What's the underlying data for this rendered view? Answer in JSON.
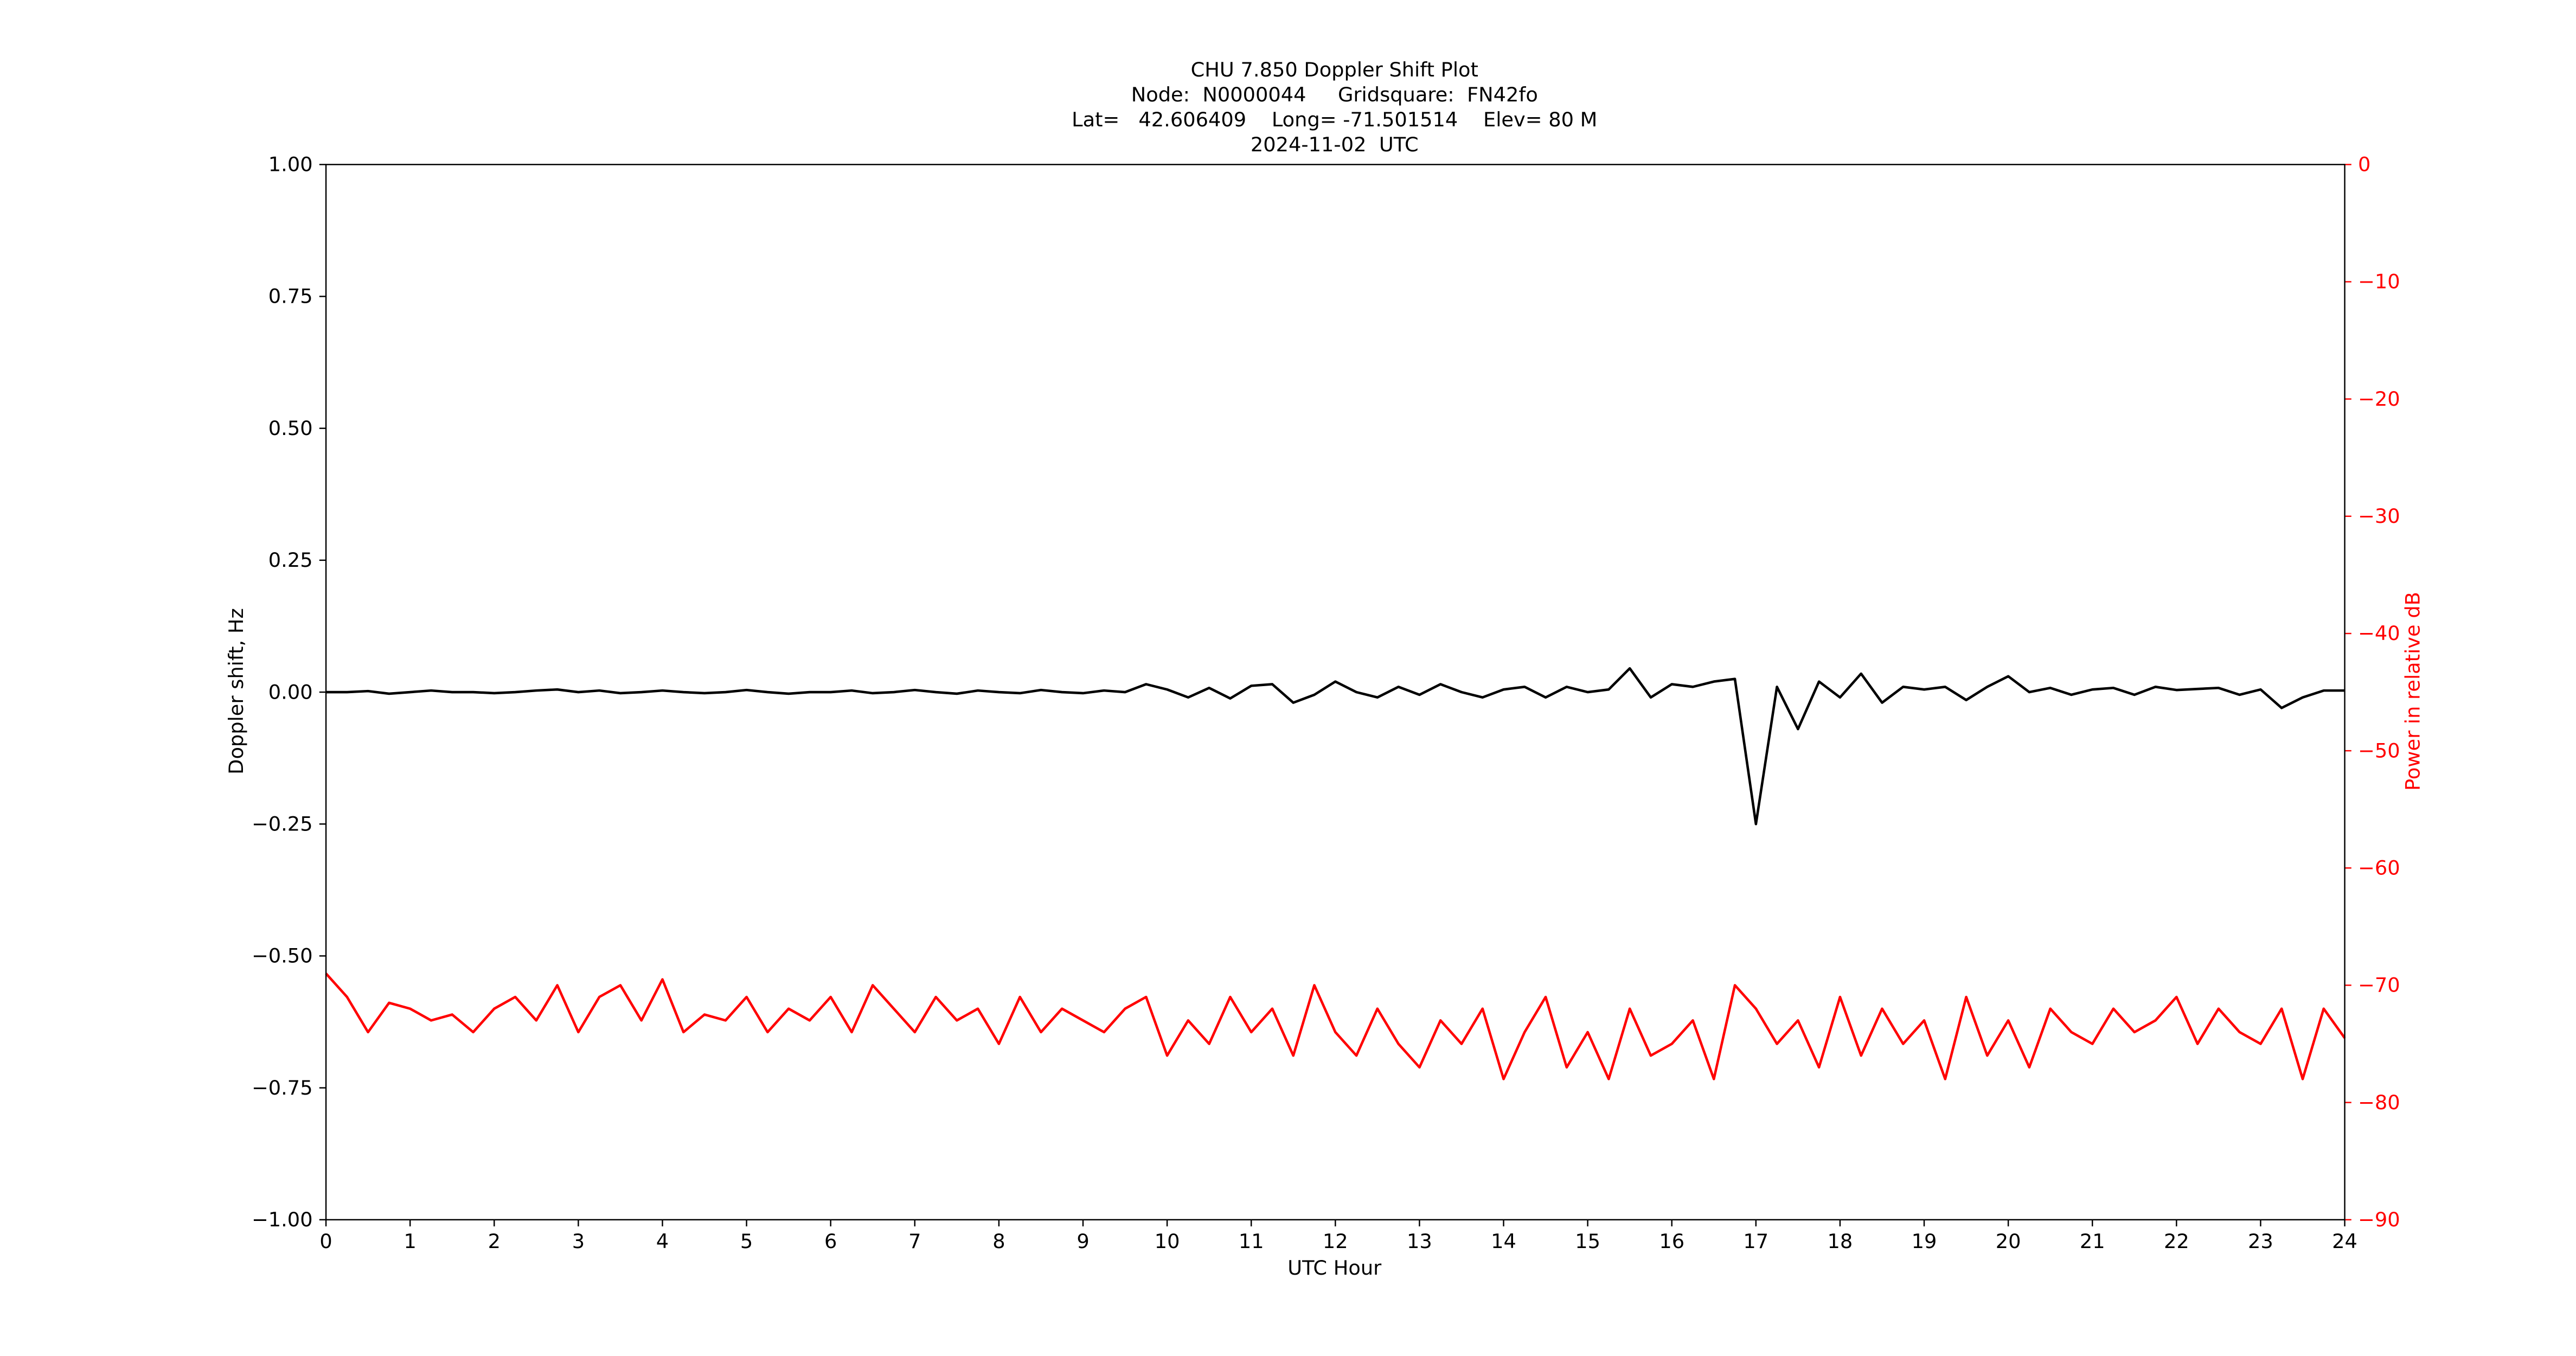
{
  "chart_data": {
    "type": "line",
    "title": [
      "CHU 7.850 Doppler Shift Plot",
      "Node:  N0000044     Gridsquare:  FN42fo",
      "Lat=   42.606409    Long= -71.501514    Elev= 80 M",
      "2024-11-02  UTC"
    ],
    "xlabel": "UTC Hour",
    "ylabel": "Doppler shift, Hz",
    "y2label": "Power in relative dB",
    "xlim": [
      0,
      24
    ],
    "xticks": [
      0,
      1,
      2,
      3,
      4,
      5,
      6,
      7,
      8,
      9,
      10,
      11,
      12,
      13,
      14,
      15,
      16,
      17,
      18,
      19,
      20,
      21,
      22,
      23,
      24
    ],
    "ylim": [
      -1,
      1
    ],
    "yticks": [
      {
        "value": -1,
        "label": "−1.00"
      },
      {
        "value": -0.75,
        "label": "−0.75"
      },
      {
        "value": -0.5,
        "label": "−0.50"
      },
      {
        "value": -0.25,
        "label": "−0.25"
      },
      {
        "value": 0,
        "label": "0.00"
      },
      {
        "value": 0.25,
        "label": "0.25"
      },
      {
        "value": 0.5,
        "label": "0.50"
      },
      {
        "value": 0.75,
        "label": "0.75"
      },
      {
        "value": 1,
        "label": "1.00"
      }
    ],
    "y2lim": [
      -90,
      0
    ],
    "y2ticks": [
      {
        "value": -90,
        "label": "−90"
      },
      {
        "value": -80,
        "label": "−80"
      },
      {
        "value": -70,
        "label": "−70"
      },
      {
        "value": -60,
        "label": "−60"
      },
      {
        "value": -50,
        "label": "−50"
      },
      {
        "value": -40,
        "label": "−40"
      },
      {
        "value": -30,
        "label": "−30"
      },
      {
        "value": -20,
        "label": "−20"
      },
      {
        "value": -10,
        "label": "−10"
      },
      0
    ],
    "x": [
      0,
      0.25,
      0.5,
      0.75,
      1,
      1.25,
      1.5,
      1.75,
      2,
      2.25,
      2.5,
      2.75,
      3,
      3.25,
      3.5,
      3.75,
      4,
      4.25,
      4.5,
      4.75,
      5,
      5.25,
      5.5,
      5.75,
      6,
      6.25,
      6.5,
      6.75,
      7,
      7.25,
      7.5,
      7.75,
      8,
      8.25,
      8.5,
      8.75,
      9,
      9.25,
      9.5,
      9.75,
      10,
      10.25,
      10.5,
      10.75,
      11,
      11.25,
      11.5,
      11.75,
      12,
      12.25,
      12.5,
      12.75,
      13,
      13.25,
      13.5,
      13.75,
      14,
      14.25,
      14.5,
      14.75,
      15,
      15.25,
      15.5,
      15.75,
      16,
      16.25,
      16.5,
      16.75,
      17,
      17.25,
      17.5,
      17.75,
      18,
      18.25,
      18.5,
      18.75,
      19,
      19.25,
      19.5,
      19.75,
      20,
      20.25,
      20.5,
      20.75,
      21,
      21.25,
      21.5,
      21.75,
      22,
      22.25,
      22.5,
      22.75,
      23,
      23.25,
      23.5,
      23.75,
      24
    ],
    "series": [
      {
        "name": "Doppler shift",
        "color": "#000000",
        "axis": "y",
        "values": [
          0,
          0,
          0.002,
          -0.003,
          0,
          0.003,
          0,
          0,
          -0.002,
          0,
          0.003,
          0.005,
          0,
          0.003,
          -0.002,
          0,
          0.003,
          0,
          -0.002,
          0,
          0.004,
          0,
          -0.003,
          0,
          0,
          0.003,
          -0.002,
          0,
          0.004,
          0,
          -0.003,
          0.003,
          0,
          -0.002,
          0.004,
          0,
          -0.002,
          0.003,
          0,
          0.015,
          0.005,
          -0.01,
          0.008,
          -0.012,
          0.012,
          0.015,
          -0.02,
          -0.005,
          0.02,
          0,
          -0.01,
          0.01,
          -0.005,
          0.015,
          0,
          -0.01,
          0.005,
          0.01,
          -0.01,
          0.01,
          0,
          0.005,
          0.045,
          -0.01,
          0.015,
          0.01,
          0.02,
          0.025,
          -0.25,
          0.01,
          -0.07,
          0.02,
          -0.01,
          0.035,
          -0.02,
          0.01,
          0.005,
          0.01,
          -0.015,
          0.01,
          0.03,
          0,
          0.008,
          -0.005,
          0.005,
          0.008,
          -0.005,
          0.01,
          0.004,
          0.006,
          0.008,
          -0.005,
          0.005,
          -0.03,
          -0.01,
          0.003,
          0.003
        ]
      },
      {
        "name": "Power",
        "color": "#ff0000",
        "axis": "y2",
        "values": [
          -69,
          -71,
          -74,
          -71.5,
          -72,
          -73,
          -72.5,
          -74,
          -72,
          -71,
          -73,
          -70,
          -74,
          -71,
          -70,
          -73,
          -69.5,
          -74,
          -72.5,
          -73,
          -71,
          -74,
          -72,
          -73,
          -71,
          -74,
          -70,
          -72,
          -74,
          -71,
          -73,
          -72,
          -75,
          -71,
          -74,
          -72,
          -73,
          -74,
          -72,
          -71,
          -76,
          -73,
          -75,
          -71,
          -74,
          -72,
          -76,
          -70,
          -74,
          -76,
          -72,
          -75,
          -77,
          -73,
          -75,
          -72,
          -78,
          -74,
          -71,
          -77,
          -74,
          -78,
          -72,
          -76,
          -75,
          -73,
          -78,
          -70,
          -72,
          -75,
          -73,
          -77,
          -71,
          -76,
          -72,
          -75,
          -73,
          -78,
          -71,
          -76,
          -73,
          -77,
          -72,
          -74,
          -75,
          -72,
          -74,
          -73,
          -71,
          -75,
          -72,
          -74,
          -75,
          -72,
          -78,
          -72,
          -74.5
        ]
      }
    ]
  }
}
